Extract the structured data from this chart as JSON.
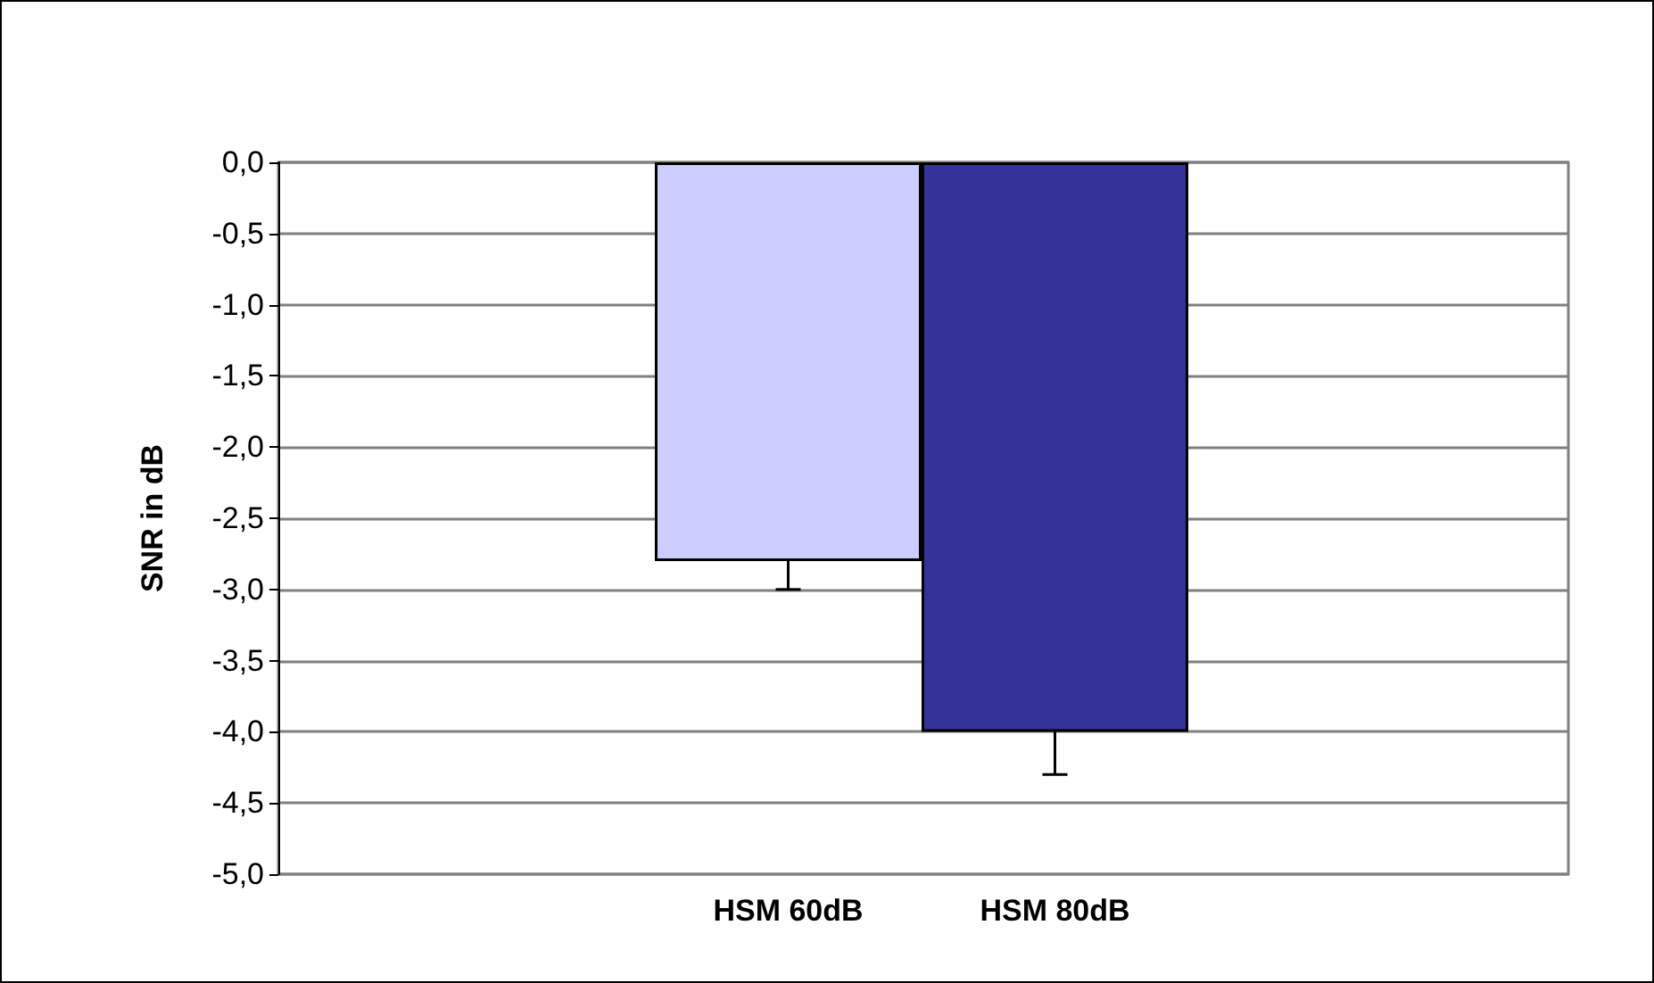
{
  "chart_data": {
    "type": "bar",
    "ylabel": "SNR in dB",
    "categories": [
      "HSM 60dB",
      "HSM 80dB"
    ],
    "values": [
      -2.8,
      -4.0
    ],
    "colors": [
      "#ccccff",
      "#333399"
    ],
    "errors": [
      [
        -3.0,
        -2.8
      ],
      [
        -4.3,
        -4.0
      ]
    ],
    "ylim": [
      -5,
      0
    ],
    "yticks": [
      {
        "value": 0,
        "label": "0,0"
      },
      {
        "value": -0.5,
        "label": "-0,5"
      },
      {
        "value": -1,
        "label": "-1,0"
      },
      {
        "value": -1.5,
        "label": "-1,5"
      },
      {
        "value": -2,
        "label": "-2,0"
      },
      {
        "value": -2.5,
        "label": "-2,5"
      },
      {
        "value": -3,
        "label": "-3,0"
      },
      {
        "value": -3.5,
        "label": "-3,5"
      },
      {
        "value": -4,
        "label": "-4,0"
      },
      {
        "value": -4.5,
        "label": "-4,5"
      },
      {
        "value": -5,
        "label": "-5,0"
      }
    ],
    "grid": "y"
  }
}
